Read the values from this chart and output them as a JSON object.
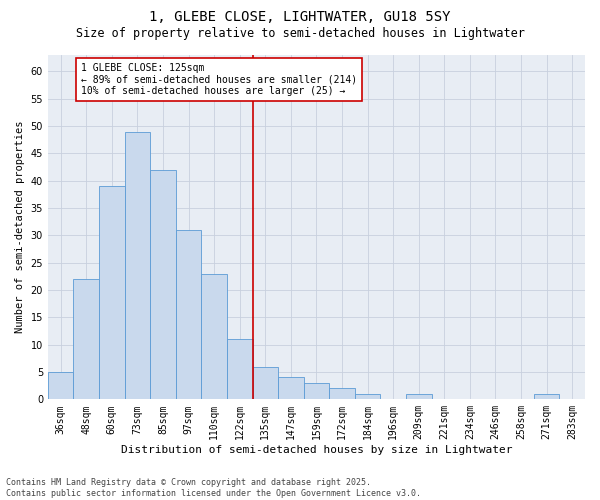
{
  "title": "1, GLEBE CLOSE, LIGHTWATER, GU18 5SY",
  "subtitle": "Size of property relative to semi-detached houses in Lightwater",
  "xlabel": "Distribution of semi-detached houses by size in Lightwater",
  "ylabel": "Number of semi-detached properties",
  "categories": [
    "36sqm",
    "48sqm",
    "60sqm",
    "73sqm",
    "85sqm",
    "97sqm",
    "110sqm",
    "122sqm",
    "135sqm",
    "147sqm",
    "159sqm",
    "172sqm",
    "184sqm",
    "196sqm",
    "209sqm",
    "221sqm",
    "234sqm",
    "246sqm",
    "258sqm",
    "271sqm",
    "283sqm"
  ],
  "values": [
    5,
    22,
    39,
    49,
    42,
    31,
    23,
    11,
    6,
    4,
    3,
    2,
    1,
    0,
    1,
    0,
    0,
    0,
    0,
    1,
    0
  ],
  "bar_color": "#c9d9ed",
  "bar_edge_color": "#5b9bd5",
  "vline_x": 7.5,
  "vline_color": "#cc0000",
  "annotation_text": "1 GLEBE CLOSE: 125sqm\n← 89% of semi-detached houses are smaller (214)\n10% of semi-detached houses are larger (25) →",
  "annotation_box_color": "#cc0000",
  "ylim": [
    0,
    63
  ],
  "yticks": [
    0,
    5,
    10,
    15,
    20,
    25,
    30,
    35,
    40,
    45,
    50,
    55,
    60
  ],
  "grid_color": "#c8d0de",
  "background_color": "#e8edf4",
  "footer_text": "Contains HM Land Registry data © Crown copyright and database right 2025.\nContains public sector information licensed under the Open Government Licence v3.0.",
  "title_fontsize": 10,
  "subtitle_fontsize": 8.5,
  "xlabel_fontsize": 8,
  "ylabel_fontsize": 7.5,
  "tick_fontsize": 7,
  "annotation_fontsize": 7,
  "footer_fontsize": 6
}
